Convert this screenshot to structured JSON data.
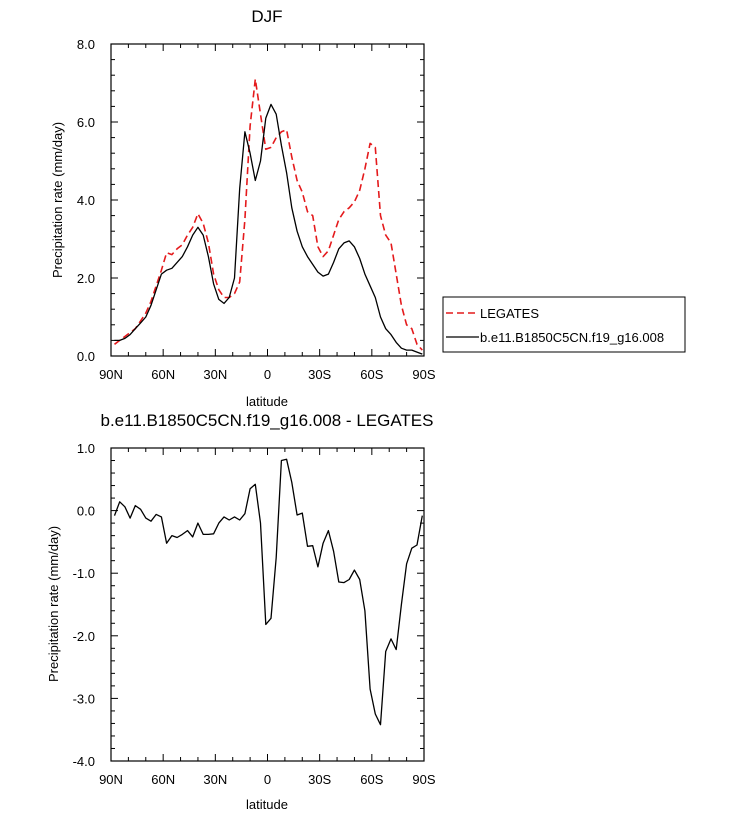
{
  "chart_data": [
    {
      "type": "line",
      "title": "DJF",
      "xlabel": "latitude",
      "ylabel": "Precipitation rate (mm/day)",
      "xlim": [
        90,
        -90
      ],
      "ylim": [
        0,
        8
      ],
      "xticks": [
        90,
        60,
        30,
        0,
        -30,
        -60,
        -90
      ],
      "xtick_labels": [
        "90N",
        "60N",
        "30N",
        "0",
        "30S",
        "60S",
        "90S"
      ],
      "yticks": [
        0,
        2,
        4,
        6,
        8
      ],
      "ytick_labels": [
        "0.0",
        "2.0",
        "4.0",
        "6.0",
        "8.0"
      ],
      "legend": "outside right",
      "series": [
        {
          "name": "LEGATES",
          "color": "#e41a1c",
          "dash": "dashed",
          "x": [
            88,
            85,
            82,
            79,
            76,
            73,
            70,
            67,
            64,
            61,
            58,
            55,
            52,
            49,
            46,
            43,
            40,
            37,
            34,
            31,
            28,
            25,
            22,
            19,
            16,
            13,
            10,
            7,
            4,
            1,
            -2,
            -5,
            -8,
            -11,
            -14,
            -17,
            -20,
            -23,
            -26,
            -29,
            -32,
            -35,
            -38,
            -41,
            -44,
            -47,
            -50,
            -53,
            -56,
            -59,
            -62,
            -65,
            -68,
            -71,
            -74,
            -77,
            -80,
            -83,
            -86,
            -89
          ],
          "values": [
            0.3,
            0.4,
            0.5,
            0.6,
            0.7,
            0.9,
            1.1,
            1.4,
            1.8,
            2.2,
            2.65,
            2.6,
            2.75,
            2.85,
            3.1,
            3.3,
            3.65,
            3.4,
            2.9,
            2.1,
            1.7,
            1.5,
            1.5,
            1.6,
            1.9,
            3.5,
            5.9,
            7.1,
            6.2,
            5.3,
            5.35,
            5.6,
            5.75,
            5.8,
            5.1,
            4.5,
            4.2,
            3.7,
            3.6,
            2.8,
            2.55,
            2.7,
            3.1,
            3.5,
            3.7,
            3.8,
            3.95,
            4.25,
            4.8,
            5.45,
            5.35,
            3.6,
            3.1,
            2.9,
            2.1,
            1.3,
            0.8,
            0.7,
            0.3,
            0.15
          ]
        },
        {
          "name": "b.e11.B1850C5CN.f19_g16.008",
          "color": "#000000",
          "dash": "solid",
          "x": [
            88,
            85,
            82,
            79,
            76,
            73,
            70,
            67,
            64,
            61,
            58,
            55,
            52,
            49,
            46,
            43,
            40,
            37,
            34,
            31,
            28,
            25,
            22,
            19,
            16,
            13,
            10,
            7,
            4,
            1,
            -2,
            -5,
            -8,
            -11,
            -14,
            -17,
            -20,
            -23,
            -26,
            -29,
            -32,
            -35,
            -38,
            -41,
            -44,
            -47,
            -50,
            -53,
            -56,
            -59,
            -62,
            -65,
            -68,
            -71,
            -74,
            -77,
            -80,
            -83,
            -86,
            -89
          ],
          "values": [
            0.4,
            0.4,
            0.45,
            0.55,
            0.7,
            0.85,
            1.0,
            1.3,
            1.7,
            2.1,
            2.2,
            2.25,
            2.4,
            2.55,
            2.8,
            3.1,
            3.3,
            3.1,
            2.55,
            1.85,
            1.45,
            1.35,
            1.5,
            2.0,
            4.3,
            5.75,
            5.2,
            4.5,
            5.0,
            6.1,
            6.45,
            6.2,
            5.4,
            4.7,
            3.8,
            3.2,
            2.8,
            2.55,
            2.35,
            2.15,
            2.05,
            2.1,
            2.4,
            2.75,
            2.9,
            2.95,
            2.8,
            2.5,
            2.1,
            1.8,
            1.5,
            1.0,
            0.7,
            0.55,
            0.35,
            0.2,
            0.15,
            0.15,
            0.1,
            0.05
          ]
        }
      ]
    },
    {
      "type": "line",
      "title": "b.e11.B1850C5CN.f19_g16.008 - LEGATES",
      "xlabel": "latitude",
      "ylabel": "Precipitation rate (mm/day)",
      "xlim": [
        90,
        -90
      ],
      "ylim": [
        -4,
        1
      ],
      "xticks": [
        90,
        60,
        30,
        0,
        -30,
        -60,
        -90
      ],
      "xtick_labels": [
        "90N",
        "60N",
        "30N",
        "0",
        "30S",
        "60S",
        "90S"
      ],
      "yticks": [
        -4,
        -3,
        -2,
        -1,
        0,
        1
      ],
      "ytick_labels": [
        "-4.0",
        "-3.0",
        "-2.0",
        "-1.0",
        "0.0",
        "1.0"
      ],
      "series": [
        {
          "color": "#000000",
          "dash": "solid",
          "x": [
            88,
            85,
            82,
            79,
            76,
            73,
            70,
            67,
            64,
            61,
            58,
            55,
            52,
            49,
            46,
            43,
            40,
            37,
            34,
            31,
            28,
            25,
            22,
            19,
            16,
            13,
            10,
            7,
            4,
            1,
            -2,
            -5,
            -8,
            -11,
            -14,
            -17,
            -20,
            -23,
            -26,
            -29,
            -32,
            -35,
            -38,
            -41,
            -44,
            -47,
            -50,
            -53,
            -56,
            -59,
            -62,
            -65,
            -68,
            -71,
            -74,
            -77,
            -80,
            -83,
            -86,
            -89
          ],
          "values": [
            -0.08,
            0.14,
            0.06,
            -0.12,
            0.08,
            0.02,
            -0.12,
            -0.17,
            -0.06,
            -0.1,
            -0.52,
            -0.4,
            -0.43,
            -0.38,
            -0.32,
            -0.42,
            -0.2,
            -0.38,
            -0.38,
            -0.37,
            -0.2,
            -0.1,
            -0.15,
            -0.1,
            -0.15,
            -0.05,
            0.35,
            0.42,
            -0.2,
            -1.82,
            -1.72,
            -0.75,
            0.8,
            0.82,
            0.45,
            -0.07,
            -0.04,
            -0.57,
            -0.56,
            -0.9,
            -0.52,
            -0.32,
            -0.65,
            -1.14,
            -1.15,
            -1.1,
            -0.95,
            -1.1,
            -1.6,
            -2.85,
            -3.25,
            -3.42,
            -2.25,
            -2.05,
            -2.22,
            -1.5,
            -0.85,
            -0.6,
            -0.55,
            -0.08
          ]
        }
      ]
    }
  ]
}
